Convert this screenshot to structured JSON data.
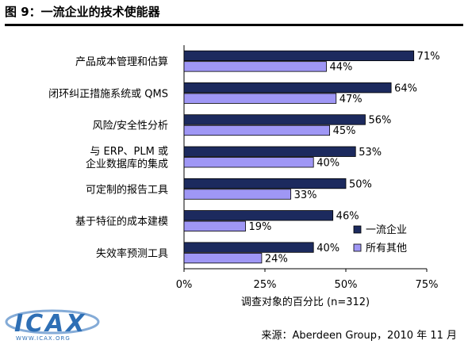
{
  "figure": {
    "title": "图 9：一流企业的技术使能器",
    "source": "来源：Aberdeen Group，2010 年 11 月",
    "watermark": "ICAX",
    "watermark_url": "WWW.ICAX.ORG"
  },
  "chart_data": {
    "type": "bar",
    "orientation": "horizontal",
    "categories": [
      [
        "产品成本管理和估算"
      ],
      [
        "闭环纠正措施系统或 QMS"
      ],
      [
        "风险/安全性分析"
      ],
      [
        "与 ERP、PLM 或",
        "企业数据库的集成"
      ],
      [
        "可定制的报告工具"
      ],
      [
        "基于特征的成本建模"
      ],
      [
        "失效率预测工具"
      ]
    ],
    "series": [
      {
        "name": "一流企业",
        "color": "#1c2a5e",
        "values": [
          71,
          64,
          56,
          53,
          50,
          46,
          40
        ]
      },
      {
        "name": "所有其他",
        "color": "#9f97f5",
        "values": [
          44,
          47,
          45,
          40,
          33,
          19,
          24
        ]
      }
    ],
    "value_suffix": "%",
    "xlim": [
      0,
      75
    ],
    "xticks": [
      0,
      25,
      50,
      75
    ],
    "xtick_labels": [
      "0%",
      "25%",
      "50%",
      "75%"
    ],
    "xlabel": "调查对象的百分比 (n=312)",
    "legend_position": "right"
  }
}
